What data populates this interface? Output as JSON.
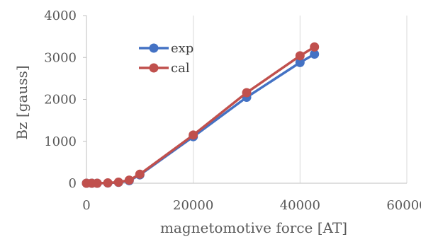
{
  "chart_data": {
    "type": "line",
    "title": "",
    "xlabel": "magnetomotive force [AT]",
    "ylabel": "Bz [gauss]",
    "xlim": [
      0,
      60000
    ],
    "ylim": [
      0,
      4000
    ],
    "x_ticks": [
      0,
      20000,
      40000,
      60000
    ],
    "y_ticks": [
      0,
      1000,
      2000,
      3000,
      4000
    ],
    "x_tick_labels": [
      "0",
      "20000",
      "40000",
      "60000"
    ],
    "y_tick_labels": [
      "0",
      "1000",
      "2000",
      "3000",
      "4000"
    ],
    "grid": "vertical",
    "legend_position": "upper-left inside plot",
    "series": [
      {
        "name": "exp",
        "color": "#4472C4",
        "points": [
          [
            0,
            0
          ],
          [
            1000,
            0
          ],
          [
            2000,
            0
          ],
          [
            4000,
            5
          ],
          [
            6000,
            20
          ],
          [
            8000,
            60
          ],
          [
            10000,
            200
          ],
          [
            20000,
            1110
          ],
          [
            30000,
            2050
          ],
          [
            40000,
            2880
          ],
          [
            42700,
            3080
          ]
        ]
      },
      {
        "name": "cal",
        "color": "#C0504D",
        "points": [
          [
            0,
            0
          ],
          [
            1000,
            0
          ],
          [
            2000,
            0
          ],
          [
            4000,
            8
          ],
          [
            6000,
            25
          ],
          [
            8000,
            75
          ],
          [
            10000,
            215
          ],
          [
            20000,
            1150
          ],
          [
            30000,
            2160
          ],
          [
            40000,
            3040
          ],
          [
            42700,
            3250
          ]
        ]
      }
    ]
  }
}
